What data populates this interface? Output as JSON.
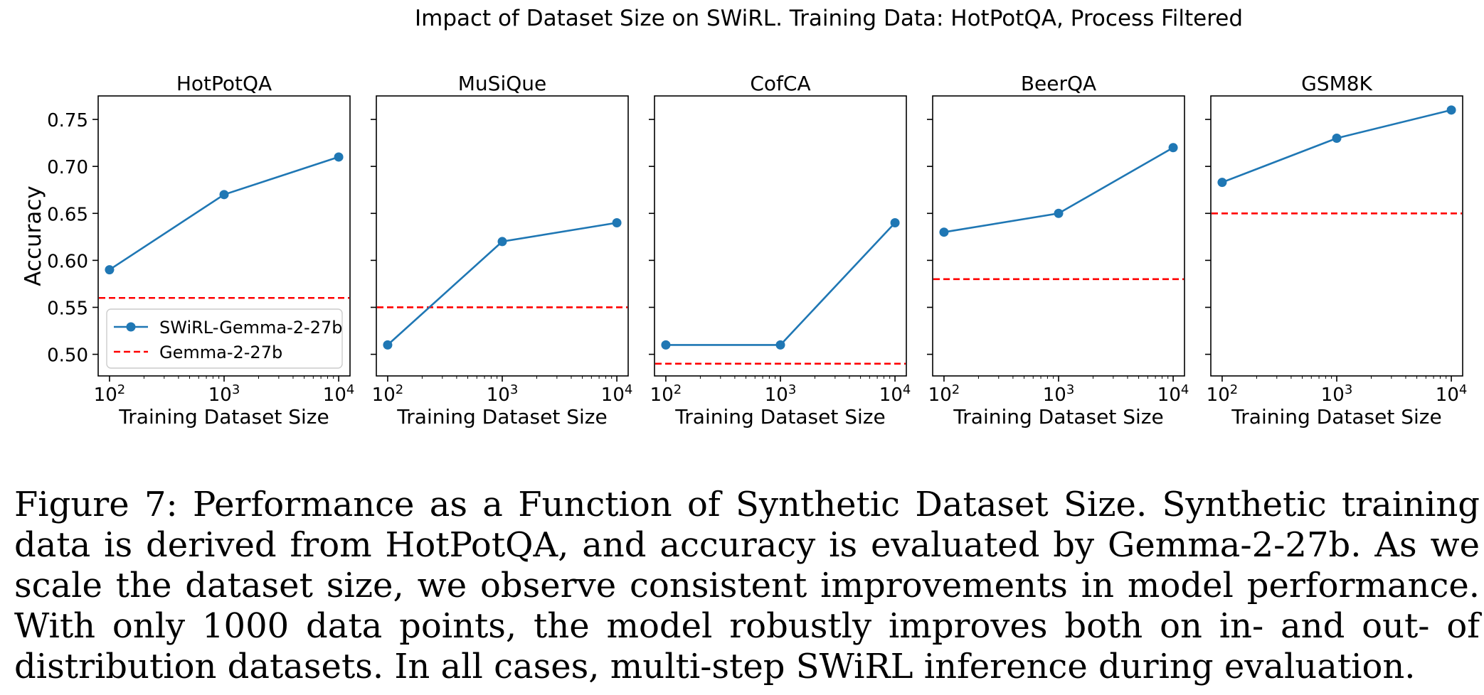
{
  "figure": {
    "suptitle": "Impact of Dataset Size on SWiRL. Training Data: HotPotQA, Process Filtered"
  },
  "chart_data": [
    {
      "type": "line",
      "title": "HotPotQA",
      "xlabel": "Training Dataset Size",
      "ylabel": "Accuracy",
      "xscale": "log",
      "x": [
        100,
        1000,
        10000
      ],
      "xtick_labels": [
        {
          "base": "10",
          "exp": "2"
        },
        {
          "base": "10",
          "exp": "3"
        },
        {
          "base": "10",
          "exp": "4"
        }
      ],
      "ylim": [
        0.477,
        0.775
      ],
      "yticks": [
        0.5,
        0.55,
        0.6,
        0.65,
        0.7,
        0.75
      ],
      "ytick_labels": [
        "0.50",
        "0.55",
        "0.60",
        "0.65",
        "0.70",
        "0.75"
      ],
      "series": [
        {
          "name": "SWiRL-Gemma-2-27b",
          "values": [
            0.59,
            0.67,
            0.71
          ],
          "color": "#1f77b4",
          "style": "solid-marker"
        },
        {
          "name": "Gemma-2-27b",
          "baseline": 0.56,
          "color": "#ff0000",
          "style": "dashed"
        }
      ],
      "legend": {
        "location": "lower-left"
      }
    },
    {
      "type": "line",
      "title": "MuSiQue",
      "xlabel": "Training Dataset Size",
      "xscale": "log",
      "x": [
        100,
        1000,
        10000
      ],
      "xtick_labels": [
        {
          "base": "10",
          "exp": "2"
        },
        {
          "base": "10",
          "exp": "3"
        },
        {
          "base": "10",
          "exp": "4"
        }
      ],
      "ylim": [
        0.477,
        0.775
      ],
      "series": [
        {
          "name": "SWiRL-Gemma-2-27b",
          "values": [
            0.51,
            0.62,
            0.64
          ],
          "color": "#1f77b4",
          "style": "solid-marker"
        },
        {
          "name": "Gemma-2-27b",
          "baseline": 0.55,
          "color": "#ff0000",
          "style": "dashed"
        }
      ]
    },
    {
      "type": "line",
      "title": "CofCA",
      "xlabel": "Training Dataset Size",
      "xscale": "log",
      "x": [
        100,
        1000,
        10000
      ],
      "xtick_labels": [
        {
          "base": "10",
          "exp": "2"
        },
        {
          "base": "10",
          "exp": "3"
        },
        {
          "base": "10",
          "exp": "4"
        }
      ],
      "ylim": [
        0.477,
        0.775
      ],
      "series": [
        {
          "name": "SWiRL-Gemma-2-27b",
          "values": [
            0.51,
            0.51,
            0.64
          ],
          "color": "#1f77b4",
          "style": "solid-marker"
        },
        {
          "name": "Gemma-2-27b",
          "baseline": 0.49,
          "color": "#ff0000",
          "style": "dashed"
        }
      ]
    },
    {
      "type": "line",
      "title": "BeerQA",
      "xlabel": "Training Dataset Size",
      "xscale": "log",
      "x": [
        100,
        1000,
        10000
      ],
      "xtick_labels": [
        {
          "base": "10",
          "exp": "2"
        },
        {
          "base": "10",
          "exp": "3"
        },
        {
          "base": "10",
          "exp": "4"
        }
      ],
      "ylim": [
        0.477,
        0.775
      ],
      "series": [
        {
          "name": "SWiRL-Gemma-2-27b",
          "values": [
            0.63,
            0.65,
            0.72
          ],
          "color": "#1f77b4",
          "style": "solid-marker"
        },
        {
          "name": "Gemma-2-27b",
          "baseline": 0.58,
          "color": "#ff0000",
          "style": "dashed"
        }
      ]
    },
    {
      "type": "line",
      "title": "GSM8K",
      "xlabel": "Training Dataset Size",
      "xscale": "log",
      "x": [
        100,
        1000,
        10000
      ],
      "xtick_labels": [
        {
          "base": "10",
          "exp": "2"
        },
        {
          "base": "10",
          "exp": "3"
        },
        {
          "base": "10",
          "exp": "4"
        }
      ],
      "ylim": [
        0.477,
        0.775
      ],
      "series": [
        {
          "name": "SWiRL-Gemma-2-27b",
          "values": [
            0.683,
            0.73,
            0.76
          ],
          "color": "#1f77b4",
          "style": "solid-marker"
        },
        {
          "name": "Gemma-2-27b",
          "baseline": 0.65,
          "color": "#ff0000",
          "style": "dashed"
        }
      ]
    }
  ],
  "caption": {
    "text": "Figure 7: Performance as a Function of Synthetic Dataset Size. Synthetic training data is derived from HotPotQA, and accuracy is evaluated by Gemma-2-27b. As we scale the dataset size, we observe consistent improvements in model performance. With only 1000 data points, the model robustly improves both on in- and out- of distribution datasets. In all cases, multi-step SWiRL inference during evaluation."
  }
}
